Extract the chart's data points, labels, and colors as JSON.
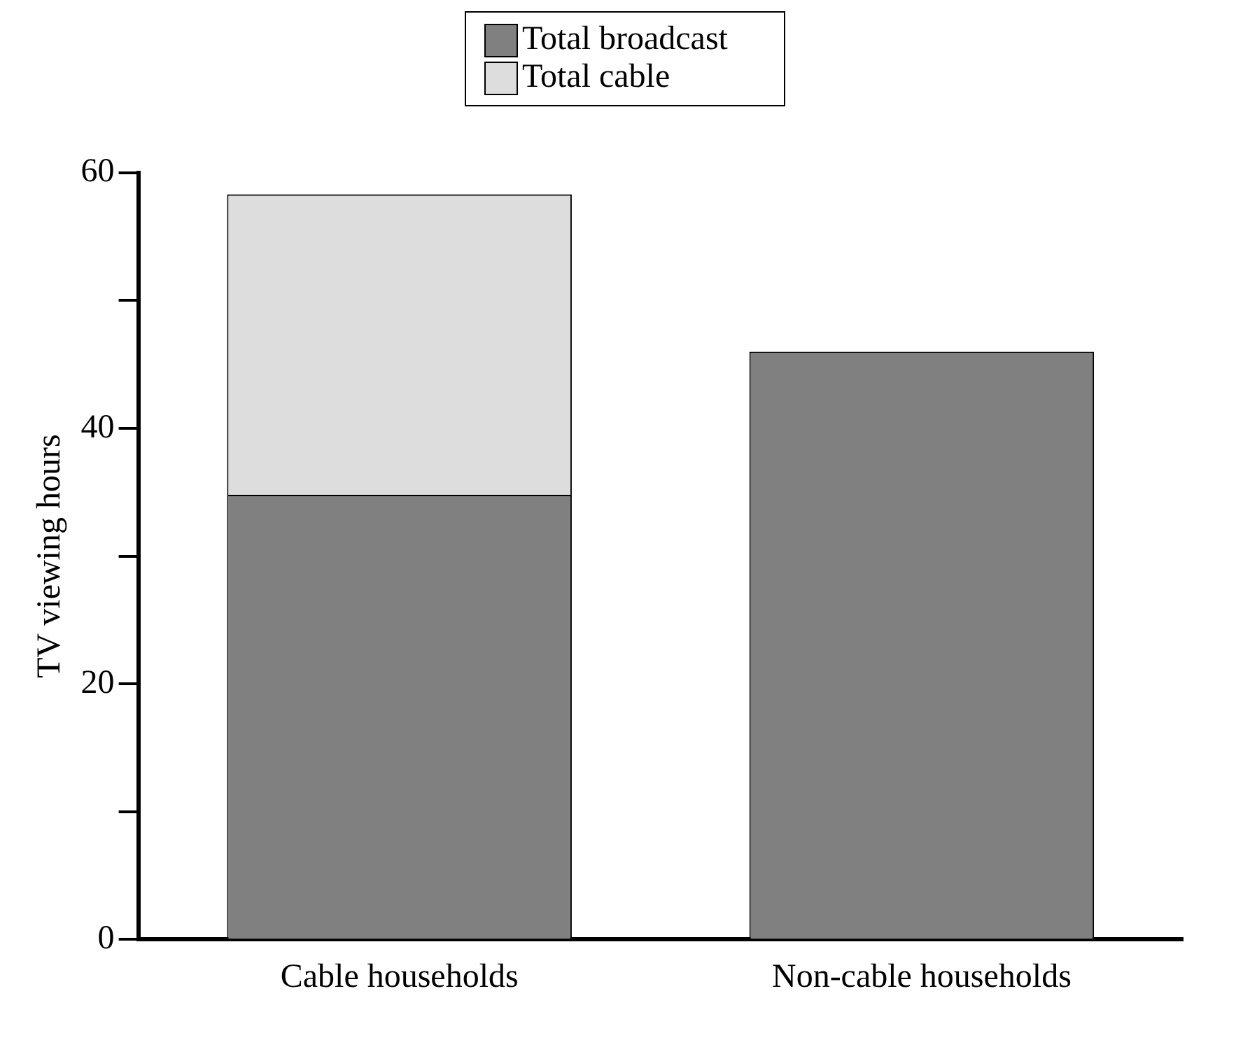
{
  "chart_data": {
    "type": "bar",
    "stacked": true,
    "ylabel": "TV viewing hours",
    "categories": [
      "Cable households",
      "Non-cable households"
    ],
    "series": [
      {
        "name": "Total broadcast",
        "color": "#808080",
        "values": [
          34.8,
          46.0
        ]
      },
      {
        "name": "Total cable",
        "color": "#dddddd",
        "values": [
          23.5,
          null
        ]
      }
    ],
    "ylim": [
      0,
      60
    ],
    "yticks": [
      0,
      {
        "value": 10,
        "label": null
      },
      20,
      {
        "value": 30,
        "label": null
      },
      40,
      {
        "value": 50,
        "label": null
      },
      60
    ],
    "grid": false,
    "legend": "top"
  }
}
